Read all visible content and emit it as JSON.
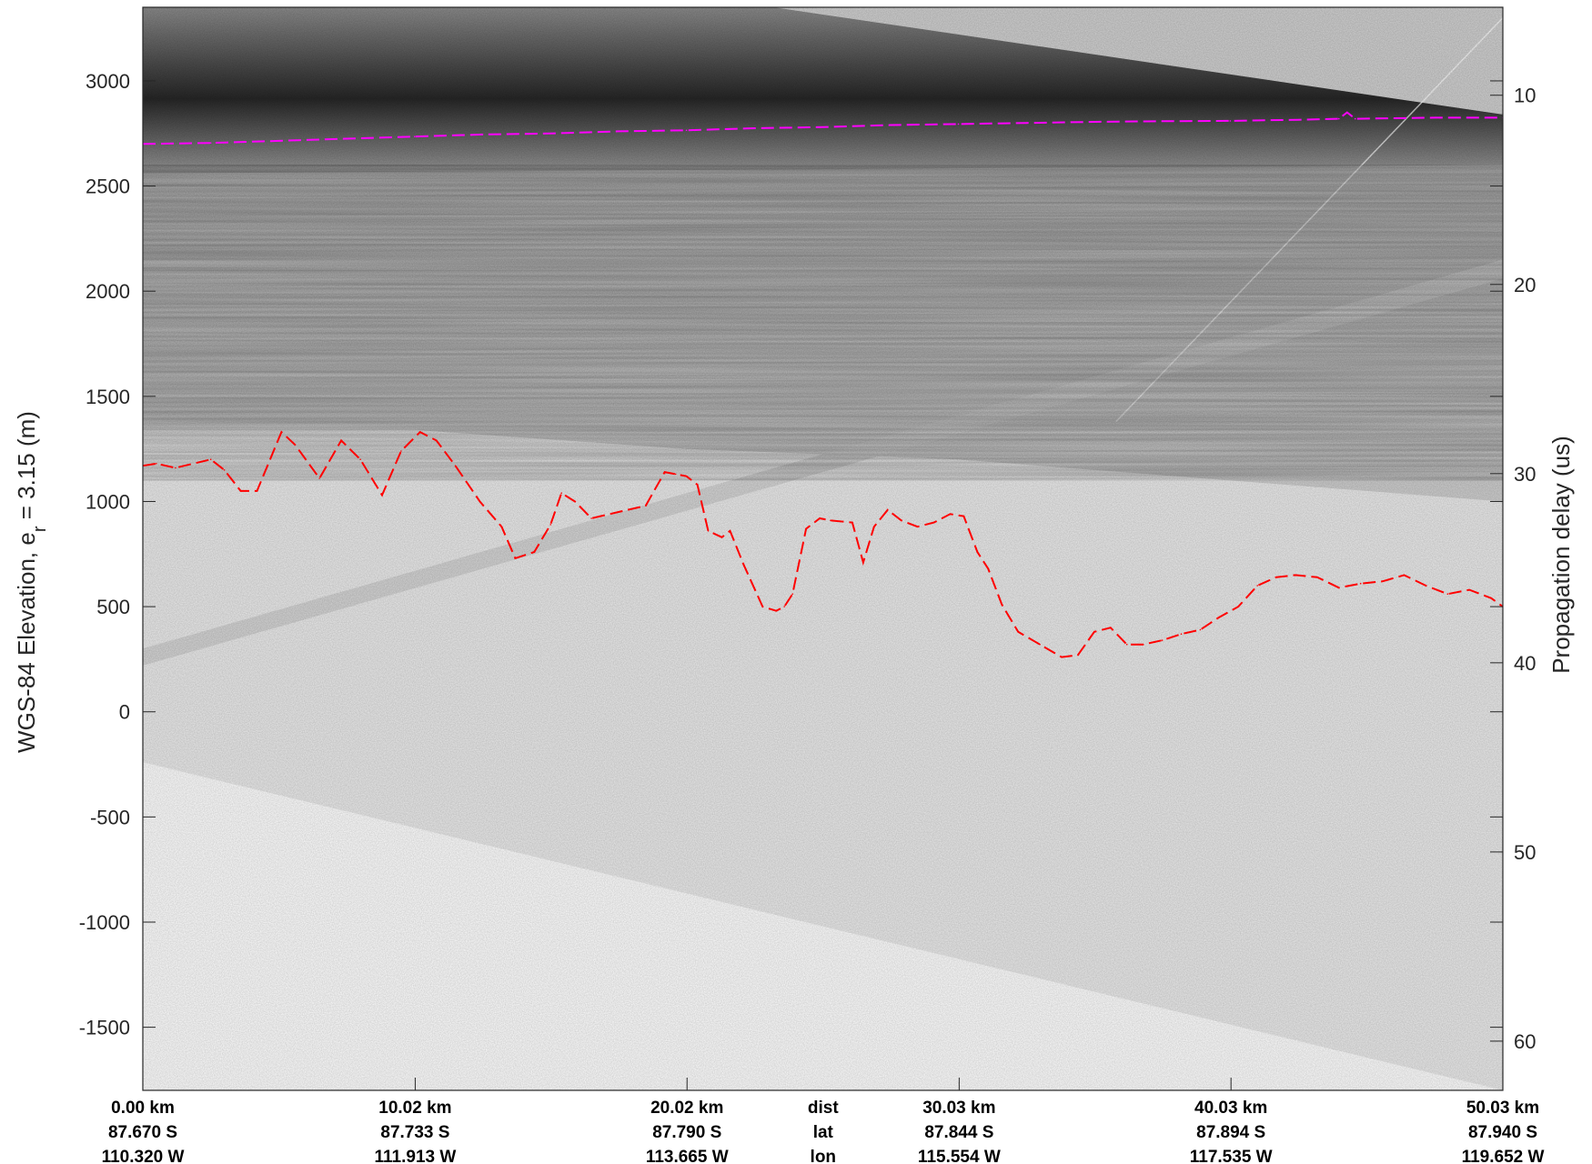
{
  "chart_data": {
    "type": "line",
    "title": "",
    "ylabel_left": {
      "text": "WGS-84 Elevation, e",
      "subscript": "r",
      "suffix": " = 3.15 (m)"
    },
    "ylabel_right": "Propagation delay (us)",
    "ylim": [
      -1800,
      3350
    ],
    "y2lim": [
      5.35,
      62.6
    ],
    "yticks": [
      3000,
      2500,
      2000,
      1500,
      1000,
      500,
      0,
      -500,
      -1000,
      -1500
    ],
    "y2ticks": [
      10,
      20,
      30,
      40,
      50,
      60
    ],
    "xlim": [
      0,
      50.03
    ],
    "xtick_rows": {
      "dist": [
        "0.00 km",
        "10.02 km",
        "20.02 km",
        "30.03 km",
        "40.03 km",
        "50.03 km"
      ],
      "lat": [
        "87.670 S",
        "87.733 S",
        "87.790 S",
        "87.844 S",
        "87.894 S",
        "87.940 S"
      ],
      "lon": [
        "110.320 W",
        "111.913 W",
        "113.665 W",
        "115.554 W",
        "117.535 W",
        "119.652 W"
      ]
    },
    "xtick_km": [
      0,
      10.02,
      20.02,
      30.03,
      40.03,
      50.03
    ],
    "row_labels": [
      "dist",
      "lat",
      "lon"
    ],
    "row_label_km": 25.025,
    "series": [
      {
        "color": "#ff00ff",
        "x": [
          0,
          2.5,
          5,
          7.5,
          10,
          12.5,
          15,
          17.5,
          20,
          22.5,
          25,
          27.5,
          30,
          32.5,
          35,
          37.5,
          40,
          42.5,
          44.0,
          44.3,
          44.6,
          47.5,
          50.03
        ],
        "y": [
          2700,
          2705,
          2715,
          2725,
          2735,
          2745,
          2750,
          2760,
          2765,
          2775,
          2780,
          2790,
          2795,
          2800,
          2805,
          2808,
          2810,
          2815,
          2820,
          2850,
          2820,
          2825,
          2825
        ]
      },
      {
        "color": "#ff0000",
        "x": [
          0,
          0.5,
          1.2,
          2.5,
          3.0,
          3.6,
          4.2,
          5.1,
          5.6,
          6.5,
          7.3,
          8.0,
          8.8,
          9.5,
          10.2,
          10.8,
          11.5,
          12.4,
          13.2,
          13.7,
          14.4,
          15.0,
          15.4,
          15.9,
          16.5,
          17.5,
          18.5,
          19.2,
          19.6,
          20.0,
          20.4,
          20.8,
          21.3,
          21.6,
          22.1,
          22.8,
          23.3,
          23.6,
          23.9,
          24.4,
          24.9,
          25.3,
          26.1,
          26.5,
          26.9,
          27.4,
          27.9,
          28.5,
          29.1,
          29.7,
          30.2,
          30.7,
          31.1,
          31.6,
          32.2,
          33.0,
          33.8,
          34.4,
          35.0,
          35.6,
          36.2,
          36.8,
          37.5,
          38.2,
          38.9,
          39.6,
          40.3,
          41.0,
          41.7,
          42.4,
          43.2,
          44.0,
          44.8,
          45.6,
          46.4,
          47.2,
          48.0,
          48.8,
          49.6,
          50.03
        ],
        "y": [
          1170,
          1180,
          1160,
          1200,
          1150,
          1050,
          1050,
          1330,
          1270,
          1110,
          1290,
          1200,
          1030,
          1240,
          1330,
          1290,
          1170,
          1000,
          880,
          730,
          760,
          890,
          1040,
          1000,
          920,
          950,
          980,
          1140,
          1130,
          1120,
          1080,
          860,
          830,
          860,
          700,
          500,
          480,
          500,
          560,
          870,
          920,
          910,
          900,
          710,
          880,
          960,
          910,
          880,
          900,
          940,
          930,
          760,
          680,
          510,
          380,
          320,
          260,
          270,
          380,
          400,
          320,
          320,
          340,
          370,
          390,
          450,
          500,
          600,
          640,
          650,
          640,
          590,
          610,
          620,
          650,
          600,
          560,
          580,
          540,
          500
        ]
      }
    ]
  }
}
